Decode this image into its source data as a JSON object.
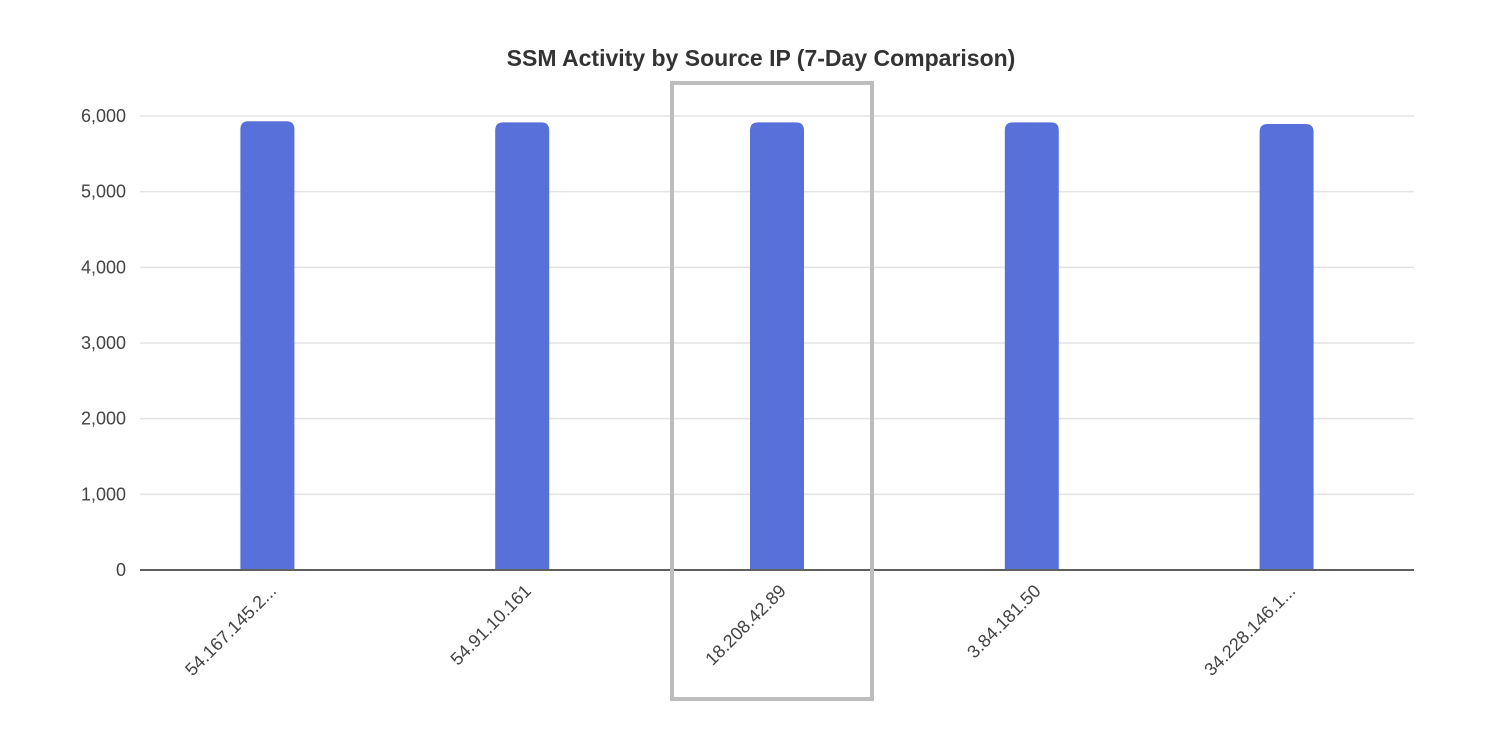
{
  "chart_data": {
    "type": "bar",
    "title": "SSM Activity by Source IP (7-Day Comparison)",
    "xlabel": "",
    "ylabel": "",
    "categories": [
      "54.167.145.2...",
      "54.91.10.161",
      "18.208.42.89",
      "3.84.181.50",
      "34.228.146.1..."
    ],
    "series": [
      {
        "name": "SSM Activity",
        "values": [
          5930,
          5915,
          5915,
          5915,
          5895
        ]
      }
    ],
    "ylim": [
      0,
      6000
    ],
    "yticks": [
      0,
      1000,
      2000,
      3000,
      4000,
      5000,
      6000
    ],
    "ytick_labels": [
      "0",
      "1,000",
      "2,000",
      "3,000",
      "4,000",
      "5,000",
      "6,000"
    ],
    "grid": true,
    "legend": "none",
    "highlighted_category": "18.208.42.89",
    "bar_color": "#5870d9"
  }
}
